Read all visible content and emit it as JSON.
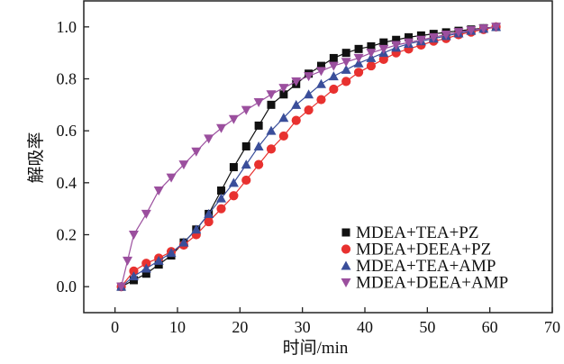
{
  "chart_data": {
    "type": "scatter",
    "title": "",
    "xlabel": "时间/min",
    "ylabel": "解吸率",
    "xlim": [
      -5,
      70
    ],
    "ylim": [
      -0.1,
      1.1
    ],
    "xticks": [
      "0",
      "10",
      "20",
      "30",
      "40",
      "50",
      "60",
      "70"
    ],
    "yticks": [
      "0.0",
      "0.2",
      "0.4",
      "0.6",
      "0.8",
      "1.0"
    ],
    "legend_position": "bottom-right",
    "series": [
      {
        "name": "MDEA+TEA+PZ",
        "marker": "square",
        "color": "#111111",
        "x": [
          1,
          3,
          5,
          7,
          9,
          11,
          13,
          15,
          17,
          19,
          21,
          23,
          25,
          27,
          29,
          31,
          33,
          35,
          37,
          39,
          41,
          43,
          45,
          47,
          49,
          51,
          53,
          55,
          57,
          59,
          61
        ],
        "y": [
          0,
          0.025,
          0.05,
          0.085,
          0.12,
          0.17,
          0.22,
          0.28,
          0.37,
          0.46,
          0.54,
          0.62,
          0.7,
          0.74,
          0.78,
          0.82,
          0.85,
          0.88,
          0.9,
          0.915,
          0.925,
          0.94,
          0.95,
          0.96,
          0.967,
          0.973,
          0.979,
          0.985,
          0.99,
          0.995,
          1.0
        ]
      },
      {
        "name": "MDEA+DEEA+PZ",
        "marker": "circle",
        "color": "#e8312f",
        "x": [
          1,
          3,
          5,
          7,
          9,
          11,
          13,
          15,
          17,
          19,
          21,
          23,
          25,
          27,
          29,
          31,
          33,
          35,
          37,
          39,
          41,
          43,
          45,
          47,
          49,
          51,
          53,
          55,
          57,
          59,
          61
        ],
        "y": [
          0,
          0.06,
          0.09,
          0.11,
          0.135,
          0.16,
          0.2,
          0.25,
          0.3,
          0.35,
          0.41,
          0.47,
          0.53,
          0.58,
          0.64,
          0.68,
          0.72,
          0.76,
          0.79,
          0.825,
          0.85,
          0.875,
          0.9,
          0.915,
          0.93,
          0.945,
          0.955,
          0.97,
          0.98,
          0.99,
          1.0
        ]
      },
      {
        "name": "MDEA+TEA+AMP",
        "marker": "triangle-up",
        "color": "#3a4e9a",
        "x": [
          1,
          3,
          5,
          7,
          9,
          11,
          13,
          15,
          17,
          19,
          21,
          23,
          25,
          27,
          29,
          31,
          33,
          35,
          37,
          39,
          41,
          43,
          45,
          47,
          49,
          51,
          53,
          55,
          57,
          59,
          61
        ],
        "y": [
          0,
          0.04,
          0.07,
          0.1,
          0.13,
          0.17,
          0.22,
          0.28,
          0.34,
          0.4,
          0.47,
          0.54,
          0.6,
          0.65,
          0.7,
          0.74,
          0.78,
          0.81,
          0.835,
          0.86,
          0.88,
          0.9,
          0.92,
          0.935,
          0.945,
          0.955,
          0.965,
          0.975,
          0.985,
          0.993,
          1.0
        ]
      },
      {
        "name": "MDEA+DEEA+AMP",
        "marker": "triangle-down",
        "color": "#9b4f9e",
        "x": [
          1,
          2,
          3,
          5,
          7,
          9,
          11,
          13,
          15,
          17,
          19,
          21,
          23,
          25,
          27,
          29,
          31,
          33,
          35,
          37,
          39,
          41,
          43,
          45,
          47,
          49,
          51,
          53,
          55,
          57,
          59,
          61
        ],
        "y": [
          0,
          0.1,
          0.2,
          0.28,
          0.37,
          0.42,
          0.47,
          0.52,
          0.57,
          0.61,
          0.645,
          0.68,
          0.71,
          0.74,
          0.765,
          0.79,
          0.81,
          0.83,
          0.85,
          0.865,
          0.88,
          0.9,
          0.915,
          0.93,
          0.94,
          0.95,
          0.96,
          0.97,
          0.98,
          0.987,
          0.994,
          1.0
        ]
      }
    ]
  }
}
